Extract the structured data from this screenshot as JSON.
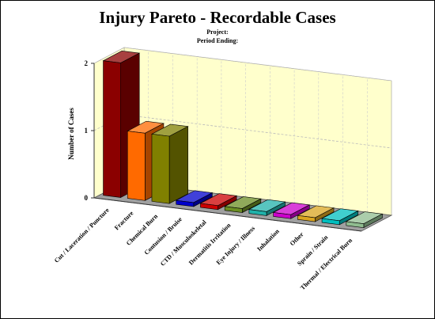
{
  "chart_data": {
    "type": "bar",
    "title": "Injury Pareto - Recordable Cases",
    "subtitle_lines": [
      "Project:",
      "Period Ending:"
    ],
    "xlabel": "",
    "ylabel": "Number of Cases",
    "ylim": [
      0,
      2
    ],
    "yticks": [
      "0",
      "1",
      "2"
    ],
    "grid": true,
    "legend": "none",
    "categories": [
      "Cut / Laceration / Puncture",
      "Fracture",
      "Chemical Burn",
      "Contusion / Bruise",
      "CTD / Musculoskeletal",
      "Dermatitis Irritation",
      "Eye Injury / Illness",
      "Inhalation",
      "Other",
      "Sprain / Strain",
      "Thermal / Electrical Burn"
    ],
    "values": [
      2,
      1,
      1,
      0,
      0,
      0,
      0,
      0,
      0,
      0,
      0
    ],
    "colors": [
      "#8b0000",
      "#ff6a00",
      "#808000",
      "#0000cc",
      "#cc0000",
      "#6b8e23",
      "#20b2aa",
      "#cc00cc",
      "#daa520",
      "#00bfbf",
      "#8fbc8f"
    ]
  }
}
